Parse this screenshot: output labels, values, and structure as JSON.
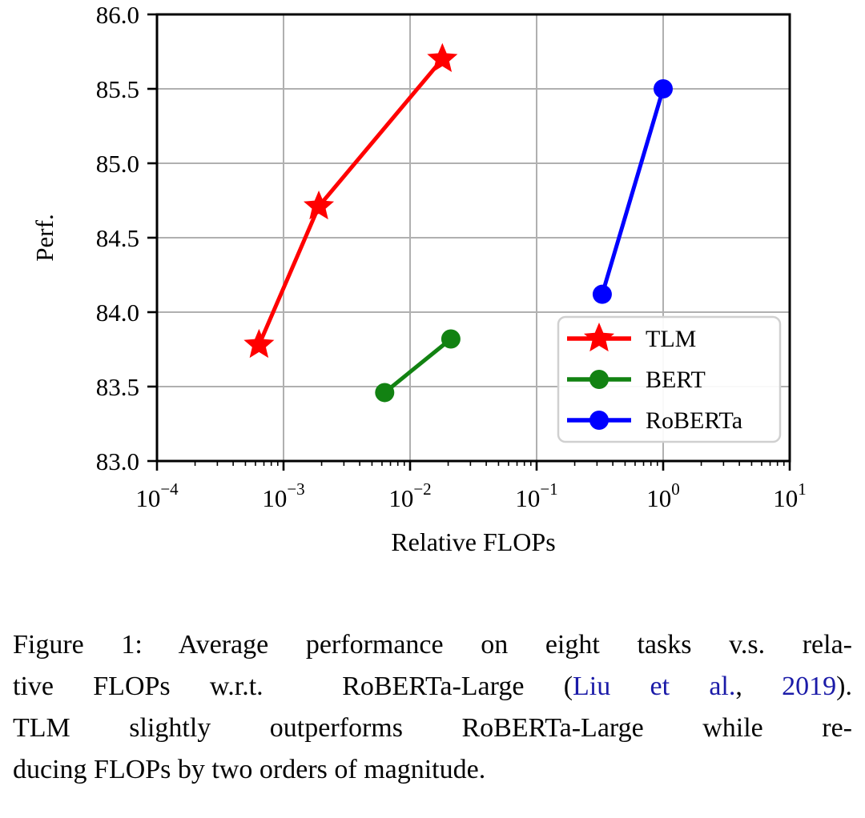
{
  "chart_data": {
    "type": "line",
    "title": "",
    "xlabel": "Relative FLOPs",
    "ylabel": "Perf.",
    "xscale": "log",
    "xlim": [
      0.0001,
      10
    ],
    "ylim": [
      83.0,
      86.0
    ],
    "xtick_exponents": [
      -4,
      -3,
      -2,
      -1,
      0,
      1
    ],
    "yticks": [
      83.0,
      83.5,
      84.0,
      84.5,
      85.0,
      85.5,
      86.0
    ],
    "ytick_labels": [
      "83.0",
      "83.5",
      "84.0",
      "84.5",
      "85.0",
      "85.5",
      "86.0"
    ],
    "grid": true,
    "legend_position": "lower-right-inside",
    "series": [
      {
        "name": "TLM",
        "color": "#ff0000",
        "marker": "star",
        "points": [
          [
            0.00064,
            83.78
          ],
          [
            0.0019,
            84.71
          ],
          [
            0.018,
            85.7
          ]
        ]
      },
      {
        "name": "BERT",
        "color": "#128212",
        "marker": "circle",
        "points": [
          [
            0.0063,
            83.46
          ],
          [
            0.021,
            83.82
          ]
        ]
      },
      {
        "name": "RoBERTa",
        "color": "#0000ff",
        "marker": "circle",
        "points": [
          [
            0.33,
            84.12
          ],
          [
            1.0,
            85.5
          ]
        ]
      }
    ]
  },
  "style": {
    "grid_color": "#b0b0b0",
    "spine_color": "#000000",
    "legend_border_color": "#d0d0d0",
    "legend_bg": "#ffffff",
    "text_color": "#000000",
    "link_color": "#1b1ba8"
  },
  "caption": {
    "lines": [
      {
        "justify": true,
        "segments": [
          {
            "text": "Figure 1: Average performance on eight tasks v.s. rela-",
            "link": false
          }
        ]
      },
      {
        "justify": true,
        "segments": [
          {
            "text": "tive FLOPs w.r.t.  RoBERTa-Large (",
            "link": false
          },
          {
            "text": "Liu et al.",
            "link": true
          },
          {
            "text": ", ",
            "link": false
          },
          {
            "text": "2019",
            "link": true
          },
          {
            "text": ").",
            "link": false
          }
        ]
      },
      {
        "justify": true,
        "segments": [
          {
            "text": "TLM slightly outperforms RoBERTa-Large while re-",
            "link": false
          }
        ]
      },
      {
        "justify": false,
        "segments": [
          {
            "text": "ducing FLOPs by two orders of magnitude.",
            "link": false
          }
        ]
      }
    ]
  }
}
